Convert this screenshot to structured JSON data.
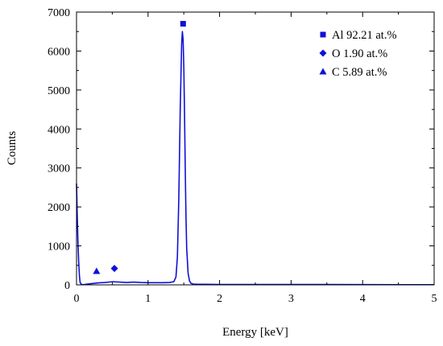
{
  "chart_data": {
    "type": "line",
    "title": "",
    "xlabel": "Energy [keV]",
    "ylabel": "Counts",
    "xlim": [
      0,
      5
    ],
    "ylim": [
      0,
      7000
    ],
    "x_ticks": [
      0,
      1,
      2,
      3,
      4,
      5
    ],
    "y_ticks": [
      0,
      1000,
      2000,
      3000,
      4000,
      5000,
      6000,
      7000
    ],
    "grid": false,
    "legend_position": "top-right",
    "line_color": "#1010d8",
    "series": [
      {
        "x": [
          0.0,
          0.01,
          0.02,
          0.03,
          0.04,
          0.05,
          0.07,
          0.1,
          0.15,
          0.2,
          0.25,
          0.3,
          0.4,
          0.5,
          0.6,
          0.7,
          0.8,
          0.9,
          1.0,
          1.1,
          1.2,
          1.3,
          1.36,
          1.39,
          1.41,
          1.43,
          1.45,
          1.47,
          1.48,
          1.49,
          1.5,
          1.51,
          1.52,
          1.53,
          1.54,
          1.56,
          1.58,
          1.6,
          1.63,
          1.7,
          2.0,
          2.5,
          3.0,
          3.5,
          4.0,
          4.5,
          5.0
        ],
        "y": [
          2600,
          1800,
          1100,
          600,
          250,
          60,
          10,
          5,
          20,
          30,
          40,
          50,
          60,
          80,
          70,
          60,
          70,
          60,
          55,
          55,
          55,
          60,
          80,
          200,
          700,
          2200,
          4500,
          6200,
          6500,
          6300,
          5600,
          4400,
          3000,
          1800,
          950,
          300,
          100,
          40,
          20,
          15,
          10,
          10,
          8,
          8,
          6,
          5,
          5
        ]
      }
    ],
    "markers": [
      {
        "name": "Al 92.21 at.%",
        "symbol": "square",
        "x": 1.49,
        "y": 6700
      },
      {
        "name": "O 1.90 at.%",
        "symbol": "diamond",
        "x": 0.53,
        "y": 420
      },
      {
        "name": "C 5.89 at.%",
        "symbol": "triangle",
        "x": 0.28,
        "y": 350
      }
    ]
  }
}
